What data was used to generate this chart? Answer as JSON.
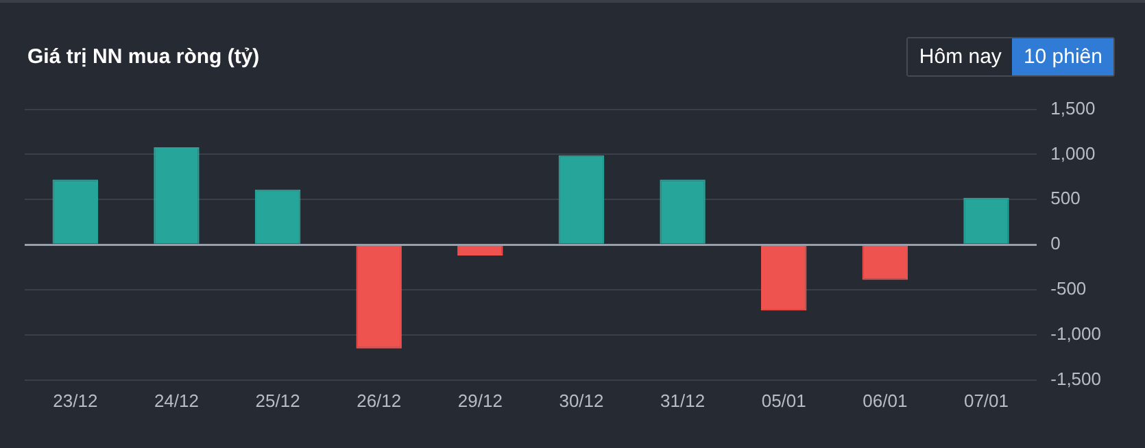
{
  "chart_data": {
    "type": "bar",
    "title": "Giá trị NN mua ròng (tỷ)",
    "annotations": [
      "Hôm nay",
      "10 phiên"
    ],
    "categories": [
      "23/12",
      "24/12",
      "25/12",
      "26/12",
      "29/12",
      "30/12",
      "31/12",
      "05/01",
      "06/01",
      "07/01"
    ],
    "values": [
      720,
      1080,
      610,
      -1150,
      -120,
      990,
      720,
      -730,
      -390,
      520
    ],
    "colors": [
      "#26a69a",
      "#26a69a",
      "#26a69a",
      "#ef5350",
      "#ef5350",
      "#26a69a",
      "#26a69a",
      "#ef5350",
      "#ef5350",
      "#26a69a"
    ],
    "ylim": [
      -1500,
      1500
    ],
    "yticks": [
      {
        "value": -1500,
        "label": "-1,500"
      },
      {
        "value": -1000,
        "label": "-1,000"
      },
      -500,
      0,
      500,
      {
        "value": 1000,
        "label": "1,000"
      },
      {
        "value": 1500,
        "label": "1,500"
      }
    ],
    "grid": "y"
  }
}
